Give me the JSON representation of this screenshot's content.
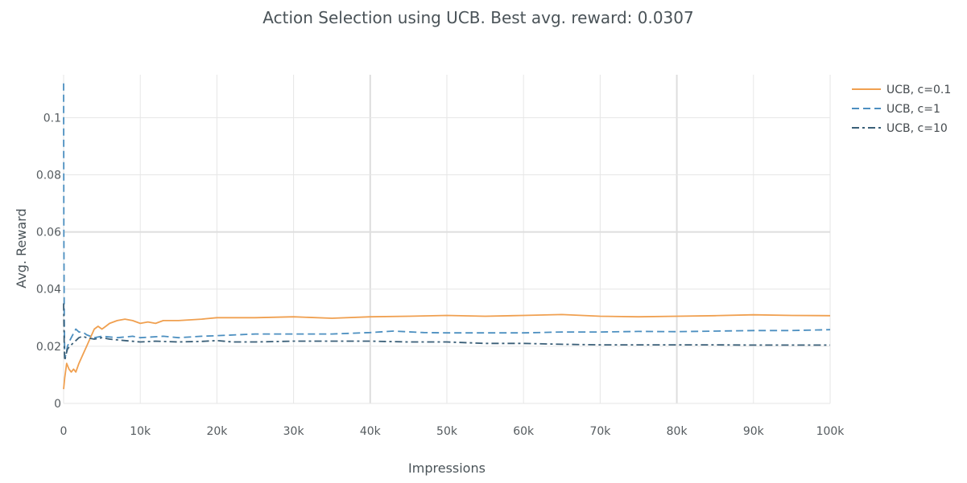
{
  "chart_data": {
    "type": "line",
    "title": "Action Selection using UCB. Best avg. reward: 0.0307",
    "xlabel": "Impressions",
    "ylabel": "Avg. Reward",
    "xlim": [
      0,
      100000
    ],
    "ylim": [
      0,
      0.115
    ],
    "x_ticks": [
      {
        "value": 0,
        "label": "0"
      },
      {
        "value": 10000,
        "label": "10k"
      },
      {
        "value": 20000,
        "label": "20k"
      },
      {
        "value": 30000,
        "label": "30k"
      },
      {
        "value": 40000,
        "label": "40k"
      },
      {
        "value": 50000,
        "label": "50k"
      },
      {
        "value": 60000,
        "label": "60k"
      },
      {
        "value": 70000,
        "label": "70k"
      },
      {
        "value": 80000,
        "label": "80k"
      },
      {
        "value": 90000,
        "label": "90k"
      },
      {
        "value": 100000,
        "label": "100k"
      }
    ],
    "y_ticks": [
      {
        "value": 0,
        "label": "0"
      },
      {
        "value": 0.02,
        "label": "0.02"
      },
      {
        "value": 0.04,
        "label": "0.04"
      },
      {
        "value": 0.06,
        "label": "0.06"
      },
      {
        "value": 0.08,
        "label": "0.08"
      },
      {
        "value": 0.1,
        "label": "0.1"
      }
    ],
    "grid": true,
    "legend_position": "top-right",
    "series": [
      {
        "name": "UCB, c=0.1",
        "color": "#f0a050",
        "dash": "solid",
        "points": [
          [
            0,
            0.005
          ],
          [
            150,
            0.009
          ],
          [
            400,
            0.014
          ],
          [
            700,
            0.012
          ],
          [
            1000,
            0.011
          ],
          [
            1300,
            0.012
          ],
          [
            1600,
            0.011
          ],
          [
            2000,
            0.014
          ],
          [
            2500,
            0.017
          ],
          [
            3000,
            0.02
          ],
          [
            3500,
            0.023
          ],
          [
            4000,
            0.026
          ],
          [
            4500,
            0.027
          ],
          [
            5000,
            0.026
          ],
          [
            5500,
            0.027
          ],
          [
            6000,
            0.028
          ],
          [
            7000,
            0.029
          ],
          [
            8000,
            0.0295
          ],
          [
            9000,
            0.029
          ],
          [
            10000,
            0.028
          ],
          [
            11000,
            0.0285
          ],
          [
            12000,
            0.028
          ],
          [
            13000,
            0.029
          ],
          [
            15000,
            0.029
          ],
          [
            18000,
            0.0295
          ],
          [
            20000,
            0.03
          ],
          [
            25000,
            0.03
          ],
          [
            30000,
            0.0303
          ],
          [
            35000,
            0.0298
          ],
          [
            40000,
            0.0303
          ],
          [
            45000,
            0.0305
          ],
          [
            50000,
            0.0308
          ],
          [
            55000,
            0.0305
          ],
          [
            60000,
            0.0308
          ],
          [
            65000,
            0.0311
          ],
          [
            70000,
            0.0305
          ],
          [
            75000,
            0.0303
          ],
          [
            80000,
            0.0305
          ],
          [
            85000,
            0.0307
          ],
          [
            90000,
            0.031
          ],
          [
            95000,
            0.0308
          ],
          [
            100000,
            0.0307
          ]
        ]
      },
      {
        "name": "UCB, c=1",
        "color": "#4c8fc0",
        "dash": "dashed",
        "points": [
          [
            0,
            0.112
          ],
          [
            30,
            0.06
          ],
          [
            80,
            0.03
          ],
          [
            150,
            0.016
          ],
          [
            300,
            0.017
          ],
          [
            500,
            0.02
          ],
          [
            800,
            0.022
          ],
          [
            1200,
            0.024
          ],
          [
            1600,
            0.026
          ],
          [
            2000,
            0.025
          ],
          [
            2500,
            0.025
          ],
          [
            3000,
            0.024
          ],
          [
            4000,
            0.023
          ],
          [
            5000,
            0.0235
          ],
          [
            7000,
            0.023
          ],
          [
            9000,
            0.0235
          ],
          [
            10000,
            0.023
          ],
          [
            13000,
            0.0235
          ],
          [
            15000,
            0.023
          ],
          [
            18000,
            0.0235
          ],
          [
            20000,
            0.0237
          ],
          [
            25000,
            0.0243
          ],
          [
            30000,
            0.0243
          ],
          [
            35000,
            0.0243
          ],
          [
            40000,
            0.0248
          ],
          [
            43000,
            0.0253
          ],
          [
            47000,
            0.0248
          ],
          [
            50000,
            0.0247
          ],
          [
            55000,
            0.0247
          ],
          [
            60000,
            0.0247
          ],
          [
            65000,
            0.025
          ],
          [
            70000,
            0.025
          ],
          [
            75000,
            0.0252
          ],
          [
            80000,
            0.0251
          ],
          [
            85000,
            0.0253
          ],
          [
            90000,
            0.0255
          ],
          [
            95000,
            0.0255
          ],
          [
            100000,
            0.0258
          ]
        ]
      },
      {
        "name": "UCB, c=10",
        "color": "#3a5f78",
        "dash": "dashdot",
        "points": [
          [
            0,
            0.035
          ],
          [
            80,
            0.02
          ],
          [
            150,
            0.015
          ],
          [
            300,
            0.017
          ],
          [
            500,
            0.019
          ],
          [
            800,
            0.02
          ],
          [
            1200,
            0.021
          ],
          [
            1600,
            0.022
          ],
          [
            2000,
            0.023
          ],
          [
            2500,
            0.0235
          ],
          [
            3000,
            0.023
          ],
          [
            4000,
            0.0225
          ],
          [
            5000,
            0.023
          ],
          [
            6000,
            0.0225
          ],
          [
            8000,
            0.022
          ],
          [
            10000,
            0.0215
          ],
          [
            12000,
            0.0218
          ],
          [
            15000,
            0.0215
          ],
          [
            18000,
            0.0217
          ],
          [
            20000,
            0.022
          ],
          [
            22000,
            0.0215
          ],
          [
            25000,
            0.0215
          ],
          [
            30000,
            0.0218
          ],
          [
            35000,
            0.0218
          ],
          [
            40000,
            0.0218
          ],
          [
            45000,
            0.0215
          ],
          [
            50000,
            0.0215
          ],
          [
            55000,
            0.021
          ],
          [
            60000,
            0.021
          ],
          [
            65000,
            0.0207
          ],
          [
            70000,
            0.0205
          ],
          [
            75000,
            0.0205
          ],
          [
            80000,
            0.0205
          ],
          [
            85000,
            0.0205
          ],
          [
            90000,
            0.0204
          ],
          [
            95000,
            0.0204
          ],
          [
            100000,
            0.0204
          ]
        ]
      }
    ]
  }
}
